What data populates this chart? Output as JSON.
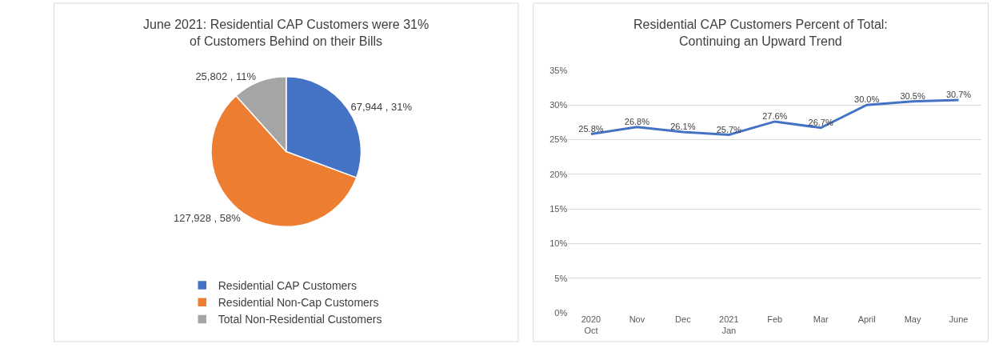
{
  "chart_data": [
    {
      "type": "pie",
      "title": "June 2021: Residential CAP Customers were 31%\nof Customers Behind on their Bills",
      "categories": [
        "Residential CAP Customers",
        "Residential Non-Cap Customers",
        "Total Non-Residential Customers"
      ],
      "values": [
        67944,
        127928,
        25802
      ],
      "value_labels": [
        "67,944 , 31%",
        "127,928 , 58%",
        "25,802 , 11%"
      ],
      "colors": [
        "#4472c4",
        "#ed7d31",
        "#a5a5a5"
      ],
      "legend": "bottom"
    },
    {
      "type": "line",
      "title": "Residential CAP Customers Percent of Total:\nContinuing an Upward Trend",
      "categories": [
        "2020\nOct",
        "Nov",
        "Dec",
        "2021\nJan",
        "Feb",
        "Mar",
        "April",
        "May",
        "June"
      ],
      "series": [
        {
          "color": "#4472c4",
          "values": [
            25.8,
            26.8,
            26.1,
            25.7,
            27.6,
            26.7,
            30.0,
            30.5,
            30.7
          ],
          "value_labels": [
            "25.8%",
            "26.8%",
            "26.1%",
            "25.7%",
            "27.6%",
            "26.7%",
            "30.0%",
            "30.5%",
            "30.7%"
          ]
        }
      ],
      "ylim": [
        0,
        35
      ],
      "yticks": [
        {
          "value": 0,
          "label": "0%"
        },
        {
          "value": 5,
          "label": "5%"
        },
        {
          "value": 10,
          "label": "10%"
        },
        {
          "value": 15,
          "label": "15%"
        },
        {
          "value": 20,
          "label": "20%"
        },
        {
          "value": 25,
          "label": "25%"
        },
        {
          "value": 30,
          "label": "30%"
        },
        {
          "value": 35,
          "label": "35%"
        }
      ],
      "grid": "y",
      "marker": "none",
      "line_style": "solid",
      "legend": false
    }
  ]
}
